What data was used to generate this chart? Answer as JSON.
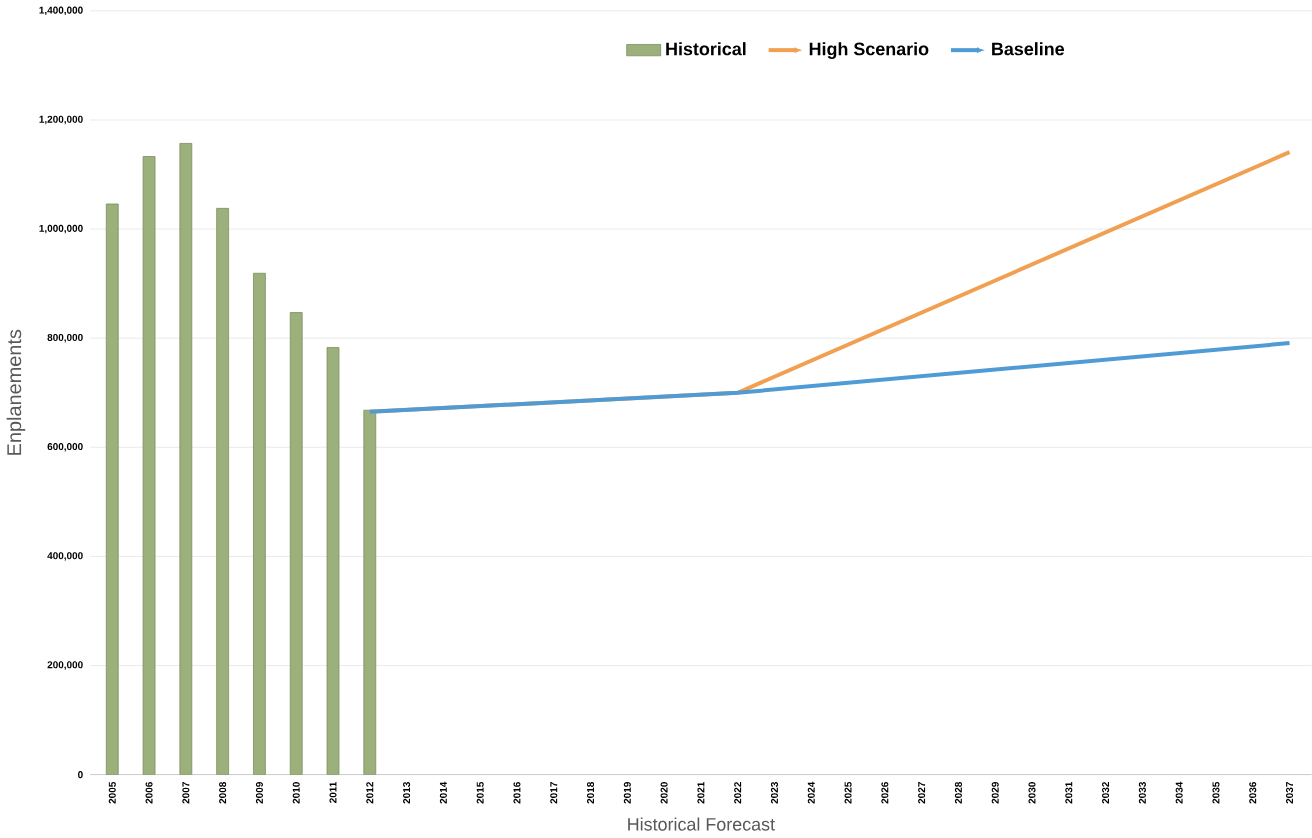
{
  "chart_data": {
    "type": "bar",
    "xlabel": "Historical Forecast",
    "ylabel": "Enplanements",
    "categories": [
      "2005",
      "2006",
      "2007",
      "2008",
      "2009",
      "2010",
      "2011",
      "2012",
      "2013",
      "2014",
      "2015",
      "2016",
      "2017",
      "2018",
      "2019",
      "2020",
      "2021",
      "2022",
      "2023",
      "2024",
      "2025",
      "2026",
      "2027",
      "2028",
      "2029",
      "2030",
      "2031",
      "2032",
      "2033",
      "2034",
      "2035",
      "2036",
      "2037"
    ],
    "series": [
      {
        "name": "Historical",
        "color": "#9bb07a",
        "values": [
          1046000,
          1133000,
          1157000,
          1038000,
          919000,
          847000,
          783000,
          668000,
          null,
          null,
          null,
          null,
          null,
          null,
          null,
          null,
          null,
          null,
          null,
          null,
          null,
          null,
          null,
          null,
          null,
          null,
          null,
          null,
          null,
          null,
          null,
          null,
          null
        ]
      },
      {
        "name": "High Scenario",
        "type": "line",
        "color": "#f0a050",
        "values": [
          null,
          null,
          null,
          null,
          null,
          null,
          null,
          665000,
          null,
          null,
          null,
          null,
          null,
          null,
          null,
          null,
          null,
          700000,
          null,
          null,
          null,
          null,
          null,
          null,
          null,
          null,
          null,
          null,
          null,
          null,
          null,
          null,
          1141000
        ]
      },
      {
        "name": "Baseline",
        "type": "line",
        "color": "#4f9bd6",
        "values": [
          null,
          null,
          null,
          null,
          null,
          null,
          null,
          665000,
          null,
          null,
          null,
          null,
          null,
          null,
          null,
          null,
          null,
          700000,
          null,
          null,
          null,
          null,
          null,
          null,
          null,
          null,
          null,
          null,
          null,
          null,
          null,
          null,
          791000
        ]
      }
    ],
    "ylim": [
      0,
      1400000
    ],
    "yticks": [
      0,
      {
        "value": 200000,
        "label": "200,000"
      },
      {
        "value": 400000,
        "label": "400,000"
      },
      {
        "value": 600000,
        "label": "600,000"
      },
      {
        "value": 800000,
        "label": "800,000"
      },
      {
        "value": 1000000,
        "label": "1,000,000"
      },
      {
        "value": 1200000,
        "label": "1,200,000"
      },
      {
        "value": 1400000,
        "label": "1,400,000"
      }
    ],
    "grid": "y",
    "legend": "top",
    "marker": "none",
    "line_style": "solid"
  }
}
